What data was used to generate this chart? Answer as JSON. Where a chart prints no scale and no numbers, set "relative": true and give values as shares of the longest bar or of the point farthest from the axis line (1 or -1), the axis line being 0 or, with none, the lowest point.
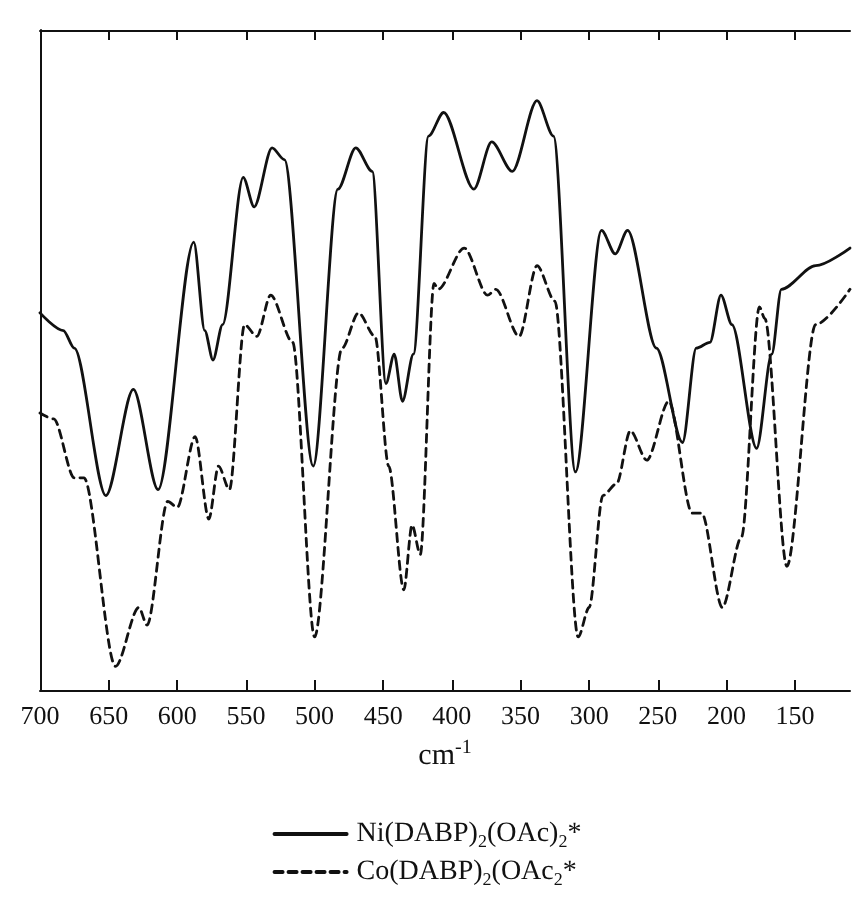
{
  "chart_data": {
    "type": "line",
    "xlabel": "cm$^{-1}$",
    "relative": true,
    "xlim": [
      700,
      110
    ],
    "xticks": [
      700,
      650,
      600,
      550,
      500,
      450,
      400,
      350,
      300,
      250,
      200,
      150
    ],
    "grid": false,
    "legend": "bottom",
    "marker": "none",
    "tick_labels": "x",
    "series": [
      {
        "name": "Ni(DABP)$_{2}$(OAc)$_{2}$*",
        "color": "#111111",
        "line_style": "solid",
        "x": [
          700,
          683,
          675,
          652,
          632,
          614,
          588,
          580,
          574,
          567,
          552,
          544,
          531,
          522,
          501,
          483,
          470,
          458,
          448,
          442,
          436,
          428,
          417,
          406,
          384,
          371,
          356,
          338,
          326,
          310,
          291,
          281,
          272,
          251,
          232,
          222,
          212,
          204,
          196,
          178,
          167,
          160,
          135,
          110
        ],
        "values": [
          0.64,
          0.61,
          0.58,
          0.33,
          0.51,
          0.34,
          0.76,
          0.61,
          0.56,
          0.62,
          0.87,
          0.82,
          0.92,
          0.9,
          0.38,
          0.85,
          0.92,
          0.88,
          0.52,
          0.57,
          0.49,
          0.57,
          0.94,
          0.98,
          0.85,
          0.93,
          0.88,
          1.0,
          0.94,
          0.37,
          0.78,
          0.74,
          0.78,
          0.58,
          0.42,
          0.58,
          0.59,
          0.67,
          0.62,
          0.41,
          0.57,
          0.68,
          0.72,
          0.75
        ]
      },
      {
        "name": "Co(DABP)$_{2}$(OAc$_{2}$*",
        "color": "#111111",
        "line_style": "dashed",
        "x": [
          700,
          690,
          675,
          668,
          645,
          628,
          622,
          607,
          600,
          587,
          577,
          570,
          562,
          551,
          542,
          532,
          516,
          500,
          480,
          468,
          456,
          446,
          435,
          429,
          423,
          413,
          410,
          391,
          374,
          368,
          351,
          338,
          325,
          308,
          300,
          290,
          280,
          270,
          258,
          242,
          225,
          218,
          203,
          189,
          176,
          172,
          156,
          135,
          110
        ],
        "values": [
          0.47,
          0.46,
          0.36,
          0.36,
          0.04,
          0.14,
          0.11,
          0.32,
          0.31,
          0.43,
          0.29,
          0.38,
          0.34,
          0.62,
          0.6,
          0.67,
          0.59,
          0.09,
          0.58,
          0.64,
          0.6,
          0.38,
          0.17,
          0.28,
          0.23,
          0.69,
          0.68,
          0.75,
          0.67,
          0.68,
          0.6,
          0.72,
          0.66,
          0.09,
          0.14,
          0.33,
          0.35,
          0.44,
          0.39,
          0.49,
          0.3,
          0.3,
          0.14,
          0.26,
          0.65,
          0.63,
          0.21,
          0.62,
          0.68
        ]
      }
    ]
  }
}
